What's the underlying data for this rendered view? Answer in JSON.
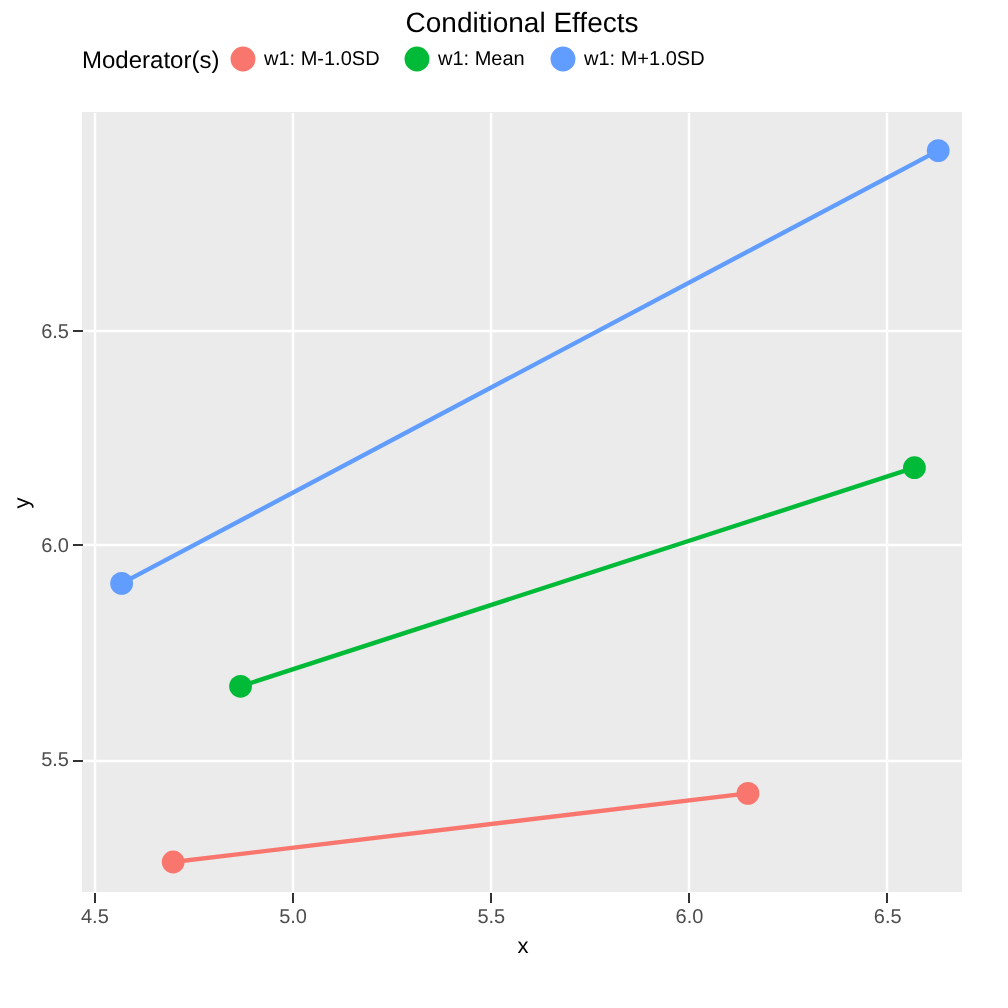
{
  "chart_data": {
    "type": "line",
    "title": "Conditional Effects",
    "xlabel": "x",
    "ylabel": "y",
    "legend_title": "Moderator(s)",
    "series": [
      {
        "name": "w1: M-1.0SD",
        "color": "#f8766d",
        "x": [
          4.7,
          6.15
        ],
        "values": [
          5.26,
          5.42
        ]
      },
      {
        "name": "w1: Mean",
        "color": "#00ba38",
        "x": [
          4.87,
          6.57
        ],
        "values": [
          5.67,
          6.18
        ]
      },
      {
        "name": "w1: M+1.0SD",
        "color": "#619cff",
        "x": [
          4.57,
          6.63
        ],
        "values": [
          5.91,
          6.92
        ]
      }
    ],
    "xlim": [
      4.47,
      6.69
    ],
    "ylim": [
      5.19,
      7.01
    ],
    "xticks": [
      4.5,
      {
        "value": 5,
        "label": "5.0"
      },
      5.5,
      {
        "value": 6,
        "label": "6.0"
      },
      6.5
    ],
    "yticks": [
      5.5,
      {
        "value": 6,
        "label": "6.0"
      },
      6.5
    ],
    "grid": true,
    "legend": "top",
    "marker": "circle",
    "line_style": "solid"
  }
}
